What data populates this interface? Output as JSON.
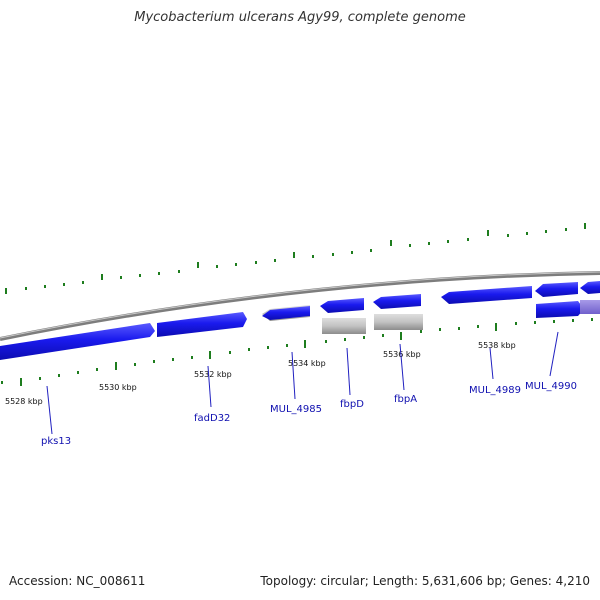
{
  "title": "Mycobacterium ulcerans Agy99, complete genome",
  "footer": {
    "accession": "Accession: NC_008611",
    "topology": "Topology: circular",
    "length": "Length: 5,631,606 bp",
    "genes": "Genes: 4,210"
  },
  "colors": {
    "gene_forward": "#1a1aee",
    "gene_reverse": "#1a1aee",
    "gene_pseudo": "#bdbdbd",
    "backbone": "#8a8a8a",
    "tick": "#1e7d1e",
    "label_line": "#2020c0",
    "label_text": "#1010b0"
  },
  "scale_labels": [
    "5528 kbp",
    "5530 kbp",
    "5532 kbp",
    "5534 kbp",
    "5536 kbp",
    "5538 kbp"
  ],
  "gene_labels": [
    "pks13",
    "fadD32",
    "MUL_4985",
    "fbpD",
    "fbpA",
    "MUL_4989",
    "MUL_4990"
  ]
}
